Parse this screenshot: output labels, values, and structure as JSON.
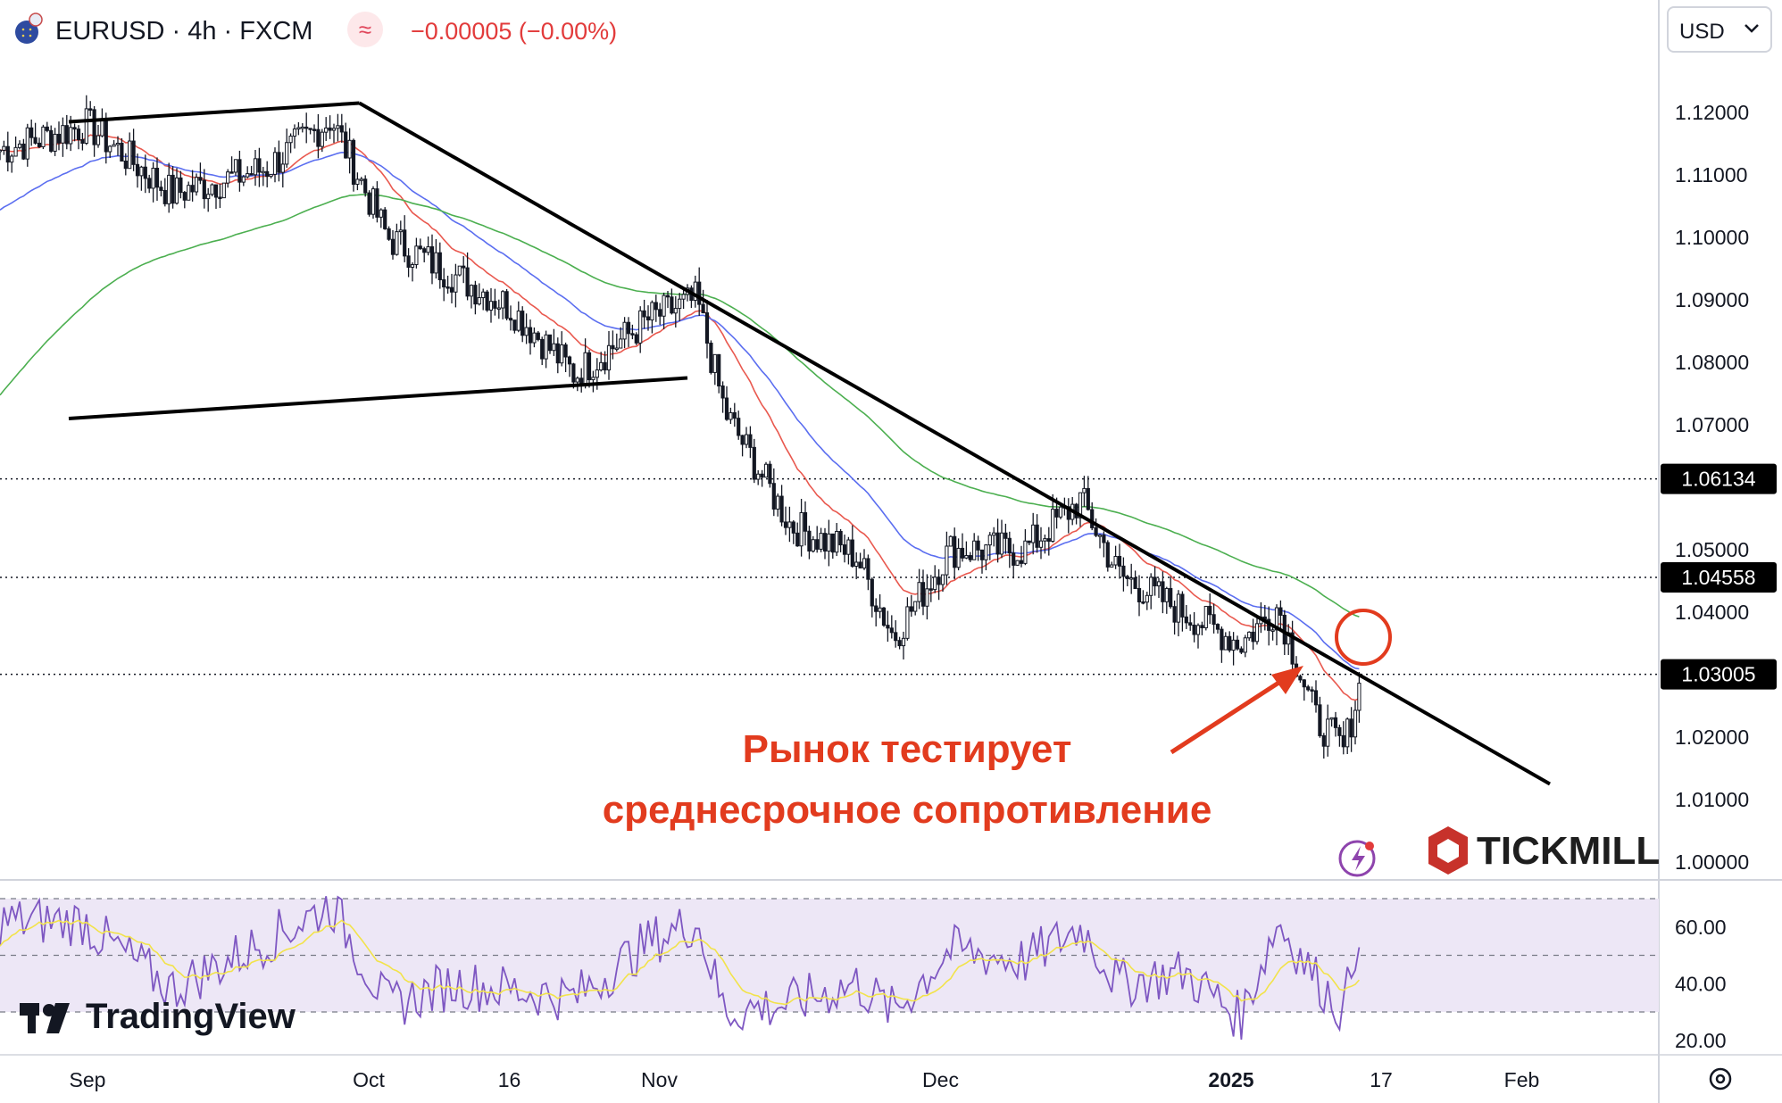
{
  "header": {
    "symbol": "EURUSD",
    "timeframe": "4h",
    "broker": "FXCM",
    "title_text": "EURUSD · 4h · FXCM",
    "change_text": "−0.00005 (−0.00%)",
    "indicator_icon": "tilde-wave-icon",
    "flag_icon": "eu-us-flag-icon"
  },
  "currency_selector": {
    "value": "USD"
  },
  "watermark": {
    "tradingview": "TradingView",
    "tickmill": "TICKMILL"
  },
  "annotation": {
    "line1": "Рынок тестирует",
    "line2": "среднесрочное сопротивление"
  },
  "colors": {
    "price_up": "#131722",
    "ema_fast": "#e9594f",
    "ema_mid": "#5b6ef0",
    "ema_slow": "#4caf50",
    "trendline": "#000000",
    "annotation": "#e23b1e",
    "rsi": "#7e57c2",
    "rsi_signal": "#f2e34a",
    "rsi_band": "#ede7f6"
  },
  "chart_data": [
    {
      "type": "line",
      "symbol": "EURUSD",
      "timeframe": "4h",
      "y_axis": {
        "ticks": [
          "1.12000",
          "1.11000",
          "1.10000",
          "1.09000",
          "1.08000",
          "1.07000",
          "1.05000",
          "1.04000",
          "1.02000",
          "1.01000",
          "1.00000"
        ],
        "ylim": [
          1.0,
          1.125
        ]
      },
      "x_axis": {
        "ticks": [
          "Sep",
          "Oct",
          "16",
          "Nov",
          "Dec",
          "2025",
          "17",
          "Feb"
        ]
      },
      "price_labels": [
        "1.06134",
        "1.04558",
        "1.03005"
      ],
      "horizontal_levels": [
        1.06134,
        1.04558,
        1.03005
      ],
      "series": [
        {
          "x": [
            "Sep 1",
            "Sep 10",
            "Sep 20",
            "Sep 27",
            "Oct 3",
            "Oct 10",
            "Oct 16",
            "Oct 23",
            "Oct 31",
            "Nov 5",
            "Nov 8",
            "Nov 15",
            "Nov 22",
            "Nov 26",
            "Dec 2",
            "Dec 10",
            "Dec 16",
            "Dec 20",
            "Dec 27",
            "Jan 2",
            "Jan 6",
            "Jan 10",
            "Jan 13",
            "Jan 15"
          ],
          "values": [
            1.118,
            1.107,
            1.111,
            1.119,
            1.1,
            1.094,
            1.089,
            1.078,
            1.087,
            1.09,
            1.072,
            1.054,
            1.049,
            1.036,
            1.05,
            1.05,
            1.058,
            1.046,
            1.04,
            1.035,
            1.041,
            1.023,
            1.018,
            1.03
          ]
        }
      ],
      "trendlines": [
        {
          "from": [
            "Aug 30",
            1.1185
          ],
          "to": [
            "Sep 30",
            1.1215
          ]
        },
        {
          "from": [
            "Sep 30",
            1.1215
          ],
          "to": [
            "Feb 4",
            1.0125
          ]
        },
        {
          "from": [
            "Aug 30",
            1.071
          ],
          "to": [
            "Nov 4",
            1.0775
          ]
        }
      ]
    },
    {
      "type": "line",
      "name": "RSI",
      "y_axis": {
        "ticks": [
          "60.00",
          "40.00",
          "20.00"
        ],
        "ylim": [
          15,
          75
        ]
      },
      "band": [
        30,
        70
      ],
      "midline": 50,
      "series": [
        {
          "x": [
            "Sep 1",
            "Sep 10",
            "Sep 20",
            "Sep 27",
            "Oct 3",
            "Oct 10",
            "Oct 16",
            "Oct 23",
            "Oct 31",
            "Nov 5",
            "Nov 8",
            "Nov 15",
            "Nov 22",
            "Nov 26",
            "Dec 2",
            "Dec 10",
            "Dec 16",
            "Dec 20",
            "Dec 27",
            "Jan 2",
            "Jan 6",
            "Jan 10",
            "Jan 13",
            "Jan 15"
          ],
          "values": [
            60,
            38,
            55,
            68,
            32,
            40,
            38,
            35,
            55,
            62,
            30,
            33,
            40,
            30,
            52,
            48,
            60,
            40,
            44,
            28,
            62,
            42,
            30,
            67
          ]
        }
      ]
    }
  ]
}
